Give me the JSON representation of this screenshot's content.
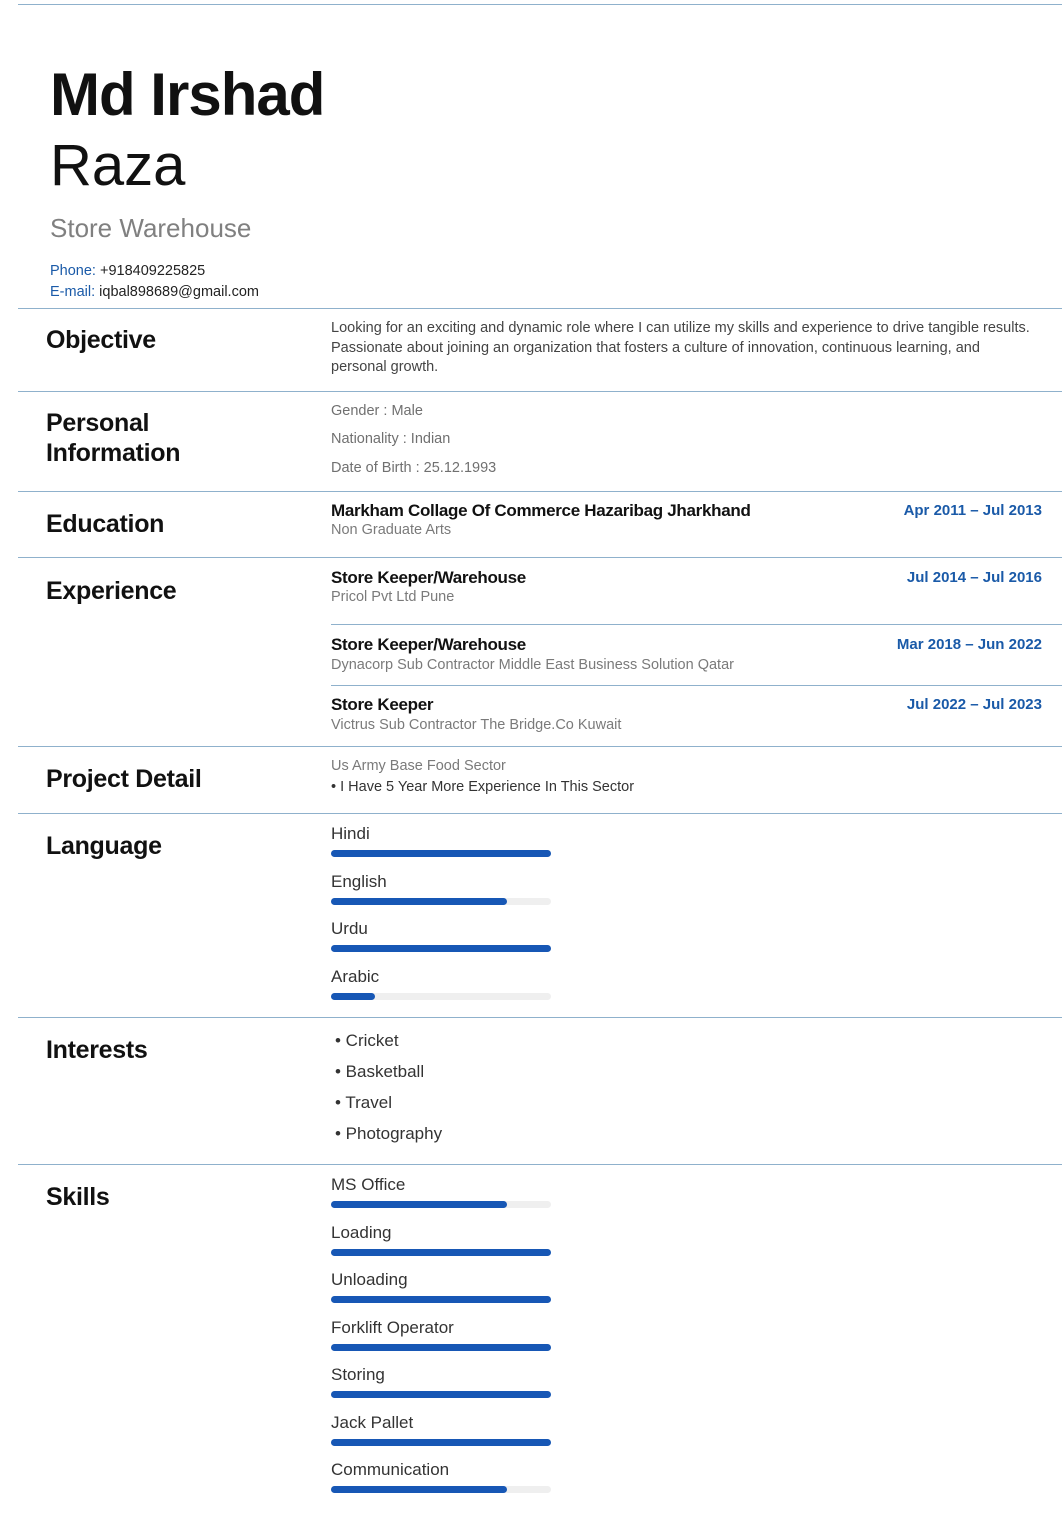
{
  "header": {
    "first_name": "Md Irshad",
    "last_name": "Raza",
    "role": "Store Warehouse",
    "phone_label": "Phone:",
    "phone": "+918409225825",
    "email_label": "E-mail:",
    "email": "iqbal898689@gmail.com"
  },
  "objective": {
    "title": "Objective",
    "line1": "Looking for an exciting and dynamic role where I can utilize my skills and experience to drive tangible results.",
    "line2": "Passionate about joining an organization that fosters a culture of innovation, continuous learning, and",
    "line3": "personal growth."
  },
  "personal": {
    "title_line1": "Personal",
    "title_line2": "Information",
    "gender": "Gender : Male",
    "nationality": "Nationality : Indian",
    "dob": "Date of Birth : 25.12.1993"
  },
  "education": {
    "title": "Education",
    "items": [
      {
        "school": "Markham Collage Of Commerce Hazaribag Jharkhand",
        "degree": "Non Graduate Arts",
        "dates": "Apr 2011 – Jul 2013"
      }
    ]
  },
  "experience": {
    "title": "Experience",
    "items": [
      {
        "role": "Store Keeper/Warehouse",
        "company": "Pricol Pvt Ltd Pune",
        "dates": "Jul 2014 – Jul 2016"
      },
      {
        "role": "Store Keeper/Warehouse",
        "company": "Dynacorp Sub Contractor Middle East Business Solution Qatar",
        "dates": "Mar 2018 – Jun 2022"
      },
      {
        "role": "Store Keeper",
        "company": "Victrus Sub Contractor The Bridge.Co Kuwait",
        "dates": "Jul 2022 – Jul 2023"
      }
    ]
  },
  "project": {
    "title": "Project Detail",
    "name": "Us Army Base Food Sector",
    "bullet": "• I Have 5 Year More Experience In This Sector"
  },
  "language": {
    "title": "Language",
    "items": [
      {
        "name": "Hindi",
        "level": 1.0
      },
      {
        "name": "English",
        "level": 0.8
      },
      {
        "name": "Urdu",
        "level": 1.0
      },
      {
        "name": "Arabic",
        "level": 0.2
      }
    ]
  },
  "interests": {
    "title": "Interests",
    "items": [
      "• Cricket",
      "• Basketball",
      "• Travel",
      "• Photography"
    ]
  },
  "skills": {
    "title": "Skills",
    "items": [
      {
        "name": "MS Office",
        "level": 0.8
      },
      {
        "name": "Loading",
        "level": 1.0
      },
      {
        "name": "Unloading",
        "level": 1.0
      },
      {
        "name": "Forklift Operator",
        "level": 1.0
      },
      {
        "name": "Storing",
        "level": 1.0
      },
      {
        "name": "Jack Pallet",
        "level": 1.0
      },
      {
        "name": "Communication",
        "level": 0.8
      }
    ]
  },
  "colors": {
    "accent": "#1757b5",
    "divider": "#8fb1cc",
    "date": "#1a5aa8"
  }
}
